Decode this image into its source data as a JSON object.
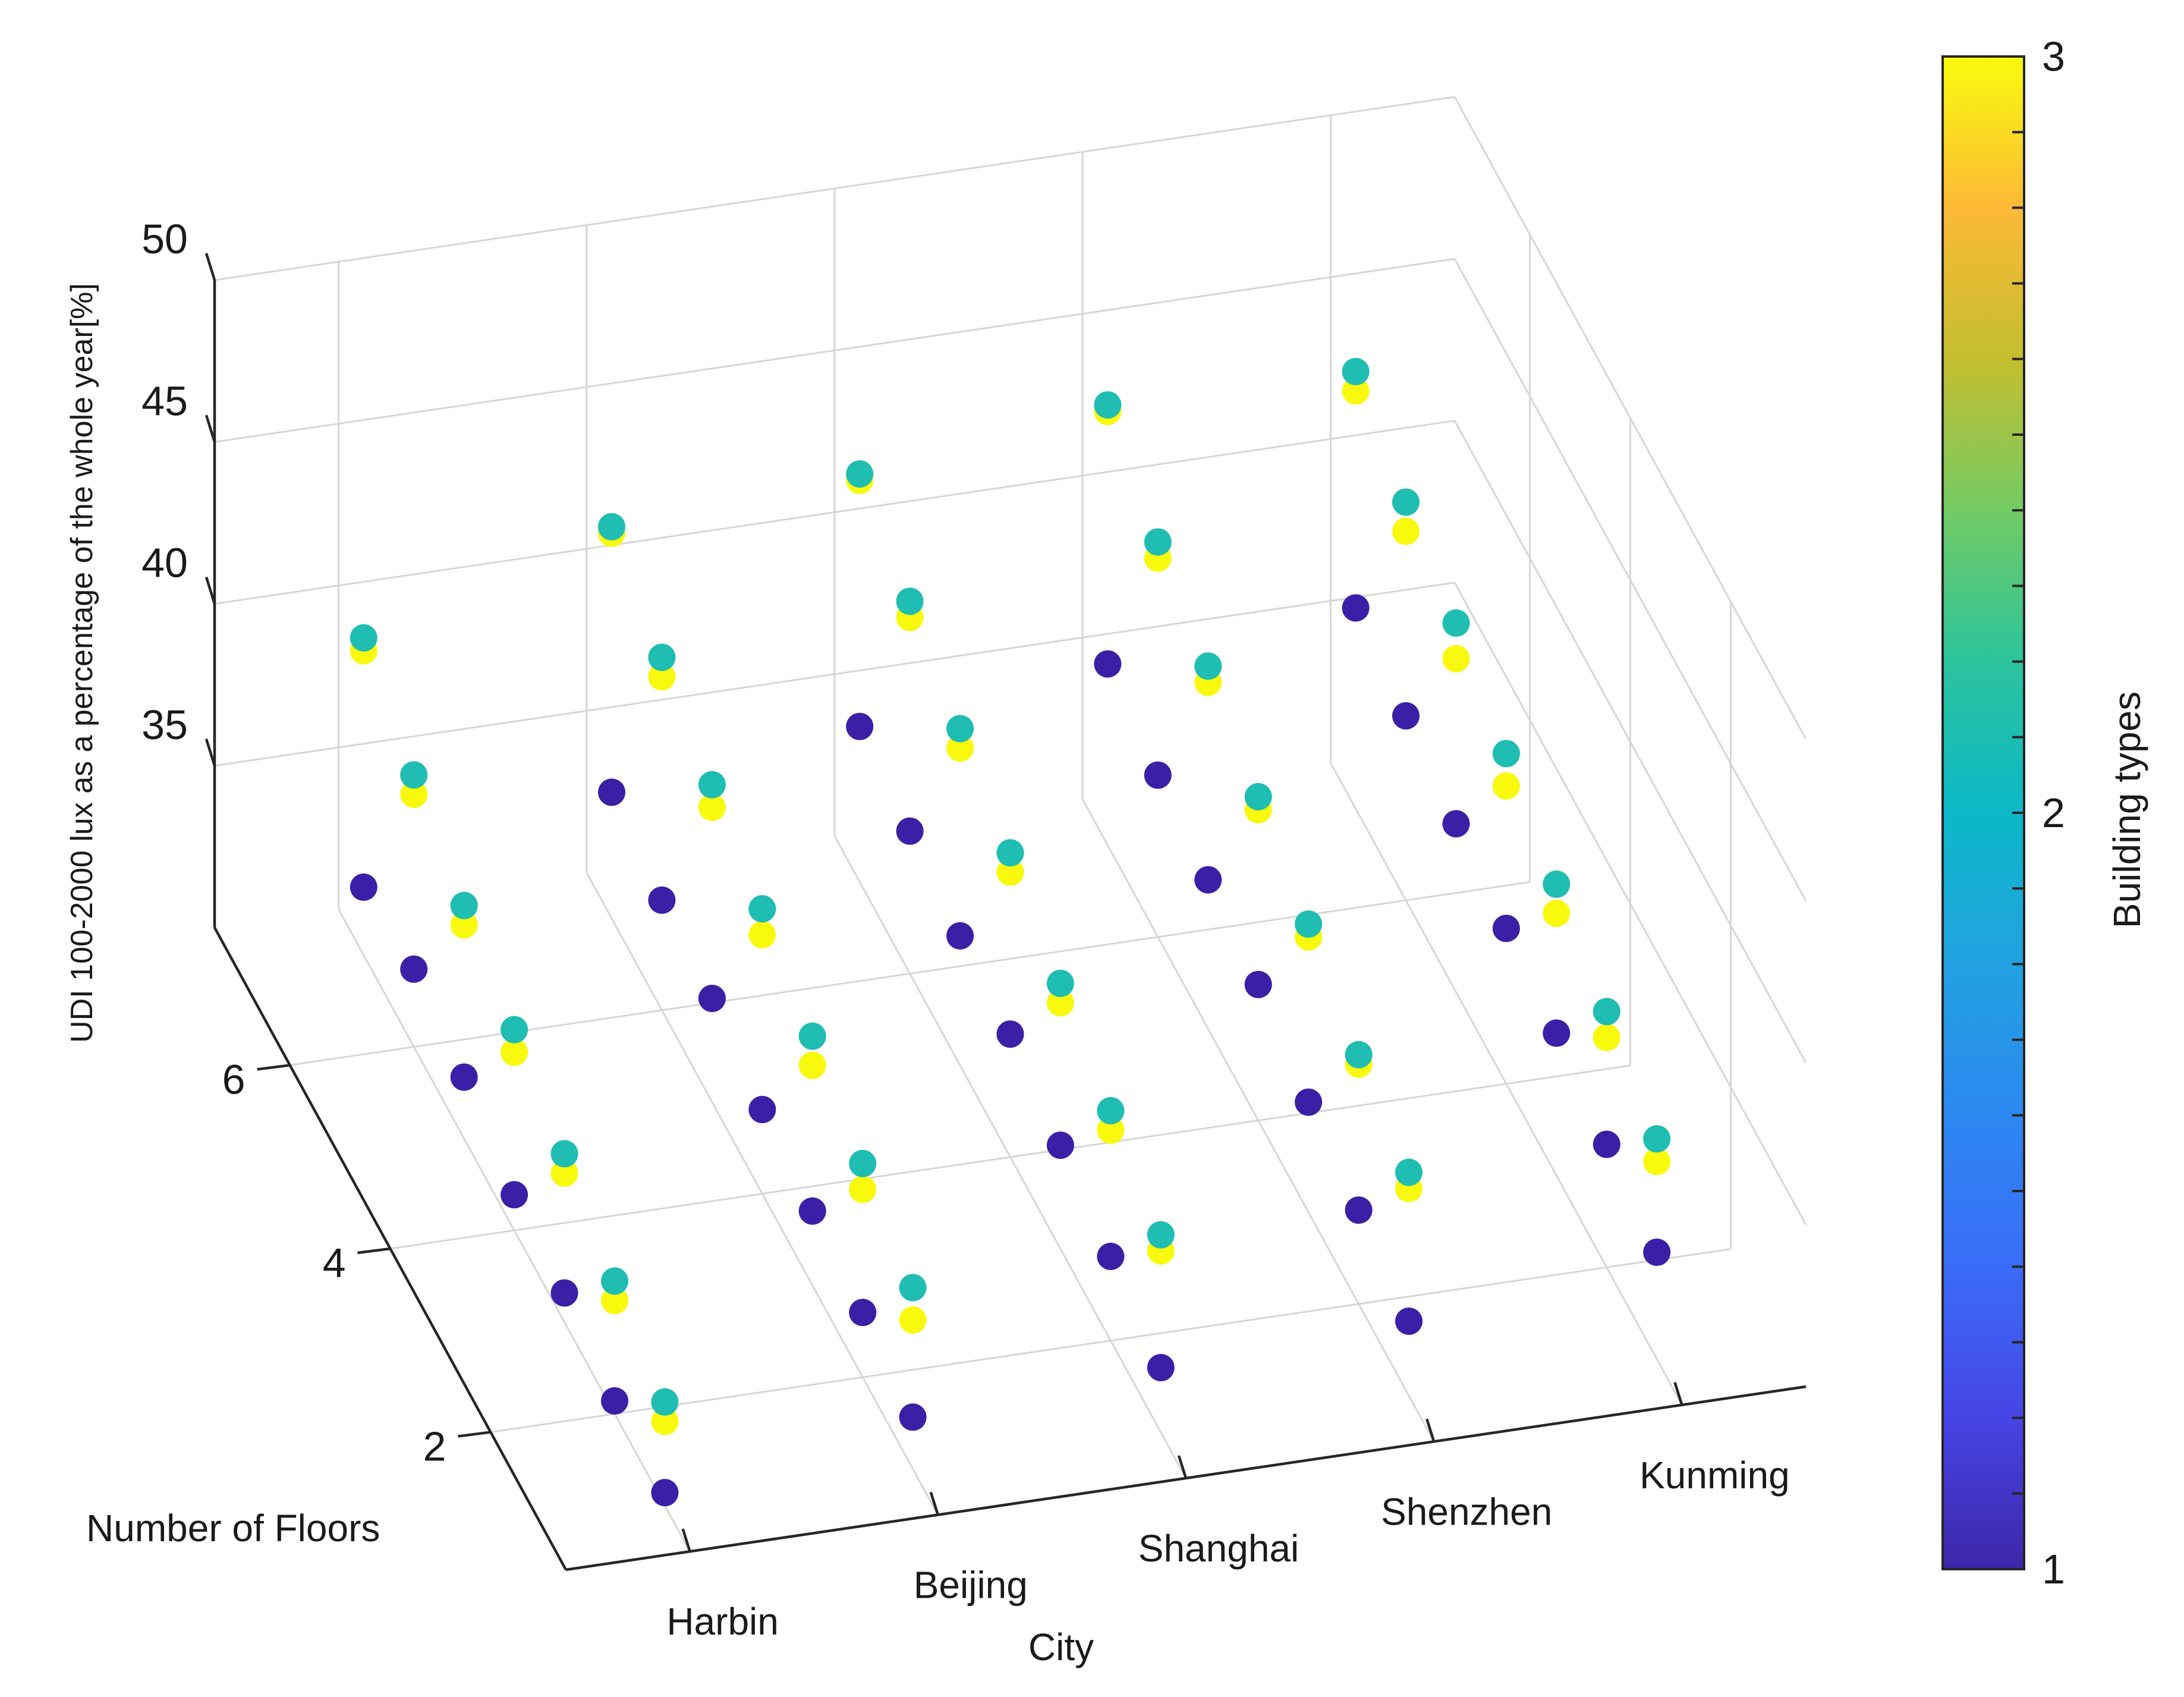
{
  "chart_data": {
    "type": "scatter3d",
    "x_label": "City",
    "y_label": "Number of Floors",
    "z_label": "UDI 100-2000 lux as a percentage of the whole year[%]",
    "colorbar_label": "Building types",
    "cities": [
      "Harbin",
      "Beijing",
      "Shanghai",
      "Shenzhen",
      "Kunming"
    ],
    "floor_ticks": [
      2,
      4,
      6
    ],
    "floors": [
      1,
      2,
      3,
      4,
      5,
      6,
      7
    ],
    "z_ticks": [
      35,
      40,
      45,
      50
    ],
    "zlim": [
      30,
      50
    ],
    "colorbar_ticks": [
      1,
      2,
      3
    ],
    "colorbar_range": [
      1,
      3
    ],
    "series": [
      {
        "name": "Building type 1",
        "building_type": 1,
        "color": "#3b1fa6",
        "points": {
          "Harbin": [
            30.4,
            30.4,
            30.9,
            31.1,
            31.9,
            32.4,
            32.1
          ],
          "Beijing": [
            31.6,
            32.0,
            32.3,
            32.6,
            33.2,
            33.4,
            33.9
          ],
          "Shanghai": [
            32.0,
            32.6,
            33.2,
            33.8,
            34.0,
            34.4,
            34.8
          ],
          "Shenzhen": [
            32.3,
            32.9,
            33.4,
            34.2,
            34.6,
            35.0,
            35.6
          ],
          "Kunming": [
            33.3,
            33.8,
            34.4,
            34.8,
            35.2,
            35.7,
            36.2
          ]
        }
      },
      {
        "name": "Building type 2",
        "building_type": 2,
        "color": "#1fbdb2",
        "points": {
          "Harbin": [
            33.2,
            34.1,
            35.2,
            36.2,
            37.2,
            38.4,
            39.8
          ],
          "Beijing": [
            35.6,
            36.6,
            37.7,
            38.8,
            39.8,
            40.9,
            42.1
          ],
          "Shanghai": [
            36.1,
            37.1,
            38.2,
            39.4,
            40.4,
            41.5,
            42.6
          ],
          "Shenzhen": [
            36.9,
            37.7,
            38.9,
            40.0,
            41.2,
            42.2,
            43.6
          ],
          "Kunming": [
            36.8,
            37.9,
            39.0,
            40.2,
            41.4,
            42.3,
            43.5
          ]
        }
      },
      {
        "name": "Building type 3",
        "building_type": 3,
        "color": "#f9f90e",
        "points": {
          "Harbin": [
            32.6,
            33.5,
            34.6,
            35.5,
            36.6,
            37.8,
            39.4
          ],
          "Beijing": [
            34.6,
            35.8,
            36.8,
            38.0,
            39.1,
            40.3,
            41.9
          ],
          "Shanghai": [
            35.6,
            36.5,
            37.6,
            38.8,
            39.8,
            41.0,
            42.4
          ],
          "Shenzhen": [
            36.4,
            37.4,
            38.5,
            39.6,
            40.7,
            41.7,
            43.4
          ],
          "Kunming": [
            36.1,
            37.1,
            38.1,
            39.2,
            40.3,
            41.4,
            42.9
          ]
        }
      }
    ]
  }
}
